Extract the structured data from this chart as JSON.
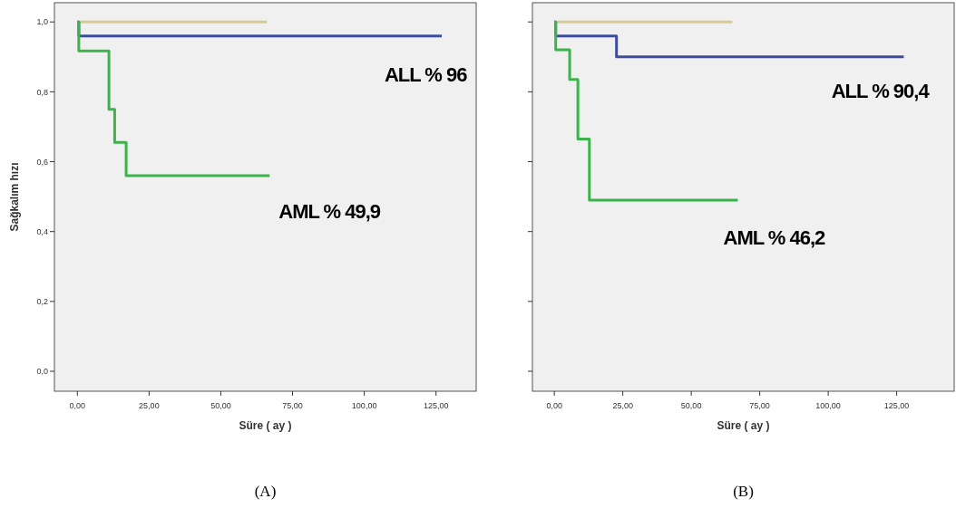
{
  "chart_data": [
    {
      "type": "step",
      "title": "(A)",
      "xlabel": "Süre ( ay )",
      "ylabel": "Sağkalım hızı",
      "xlim": [
        -8,
        139
      ],
      "ylim": [
        -0.057,
        1.055
      ],
      "xticks": [
        {
          "value": 0,
          "label": "0,00"
        },
        {
          "value": 25,
          "label": "25,00"
        },
        {
          "value": 50,
          "label": "50,00"
        },
        {
          "value": 75,
          "label": "75,00"
        },
        {
          "value": 100,
          "label": "100,00"
        },
        {
          "value": 125,
          "label": "125,00"
        }
      ],
      "yticks": [
        {
          "value": 0,
          "label": "0,0"
        },
        {
          "value": 0.2,
          "label": "0,2"
        },
        {
          "value": 0.4,
          "label": "0,4"
        },
        {
          "value": 0.6,
          "label": "0,6"
        },
        {
          "value": 0.8,
          "label": "0,8"
        },
        {
          "value": 1,
          "label": "1,0"
        }
      ],
      "series": [
        {
          "color": "#d6cc92",
          "x": [
            0,
            66
          ],
          "values": [
            1,
            1
          ]
        },
        {
          "color": "#3f4c9c",
          "x": [
            0,
            0.5,
            127
          ],
          "values": [
            1,
            0.96,
            0.96
          ]
        },
        {
          "color": "#3cb44a",
          "x": [
            0,
            0.5,
            11,
            13,
            17,
            67
          ],
          "values": [
            1,
            0.917,
            0.75,
            0.655,
            0.56,
            0.56
          ]
        }
      ],
      "annotations": [
        "ALL % 96",
        "AML % 49,9"
      ],
      "line_style": "solid",
      "grid": false
    },
    {
      "type": "step",
      "title": "(B)",
      "xlabel": "Süre ( ay )",
      "xlim": [
        -8,
        146
      ],
      "ylim": [
        -0.057,
        1.055
      ],
      "tick_labels": "x",
      "xticks": [
        {
          "value": 0,
          "label": "0,00"
        },
        {
          "value": 25,
          "label": "25,00"
        },
        {
          "value": 50,
          "label": "50,00"
        },
        {
          "value": 75,
          "label": "75,00"
        },
        {
          "value": 100,
          "label": "100,00"
        },
        {
          "value": 125,
          "label": "125,00"
        }
      ],
      "yticks": [
        {
          "value": 0,
          "label": null
        },
        {
          "value": 0.2,
          "label": null
        },
        {
          "value": 0.4,
          "label": null
        },
        {
          "value": 0.6,
          "label": null
        },
        {
          "value": 0.8,
          "label": null
        },
        {
          "value": 1,
          "label": null
        }
      ],
      "series": [
        {
          "color": "#d6cc92",
          "x": [
            0,
            65
          ],
          "values": [
            1,
            1
          ]
        },
        {
          "color": "#3f4c9c",
          "x": [
            0,
            0.5,
            22.7,
            127.6
          ],
          "values": [
            1,
            0.96,
            0.9,
            0.9
          ]
        },
        {
          "color": "#3cb44a",
          "x": [
            0,
            0.5,
            5.6,
            8.6,
            12.8,
            67
          ],
          "values": [
            1,
            0.92,
            0.835,
            0.665,
            0.49,
            0.49
          ]
        }
      ],
      "annotations": [
        "ALL % 90,4",
        "AML % 46,2"
      ],
      "line_style": "solid",
      "grid": false
    }
  ]
}
